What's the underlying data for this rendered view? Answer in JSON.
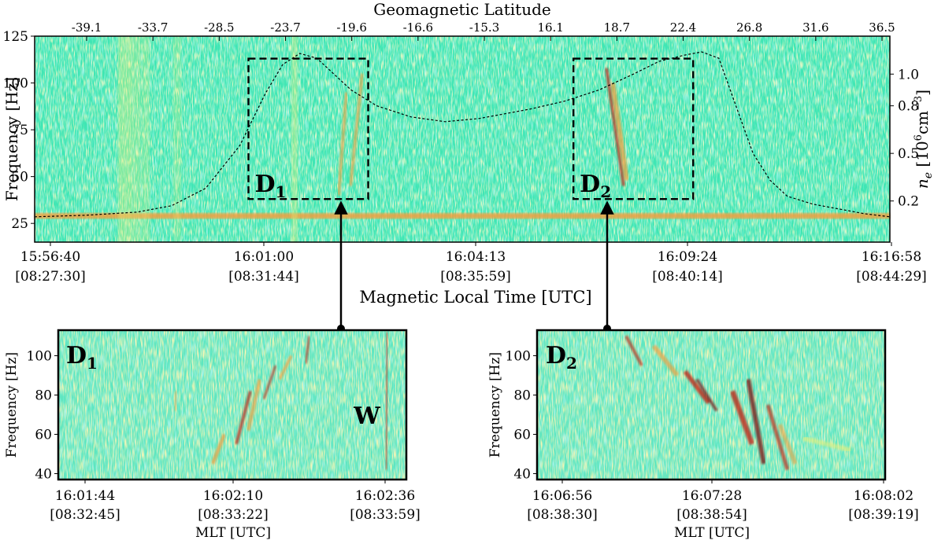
{
  "chart_data": [
    {
      "type": "heatmap",
      "panel": "top",
      "title_top_axis": "Geomagnetic Latitude",
      "top_ticks": [
        "-39.1",
        "-33.7",
        "-28.5",
        "-23.7",
        "-19.6",
        "-16.6",
        "-15.3",
        "16.1",
        "18.7",
        "22.4",
        "26.8",
        "31.6",
        "36.5"
      ],
      "ylabel": "Frequency [Hz]",
      "yticks": [
        25,
        50,
        75,
        100,
        125
      ],
      "ylim": [
        15,
        125
      ],
      "right_ylabel_main": "n",
      "right_ylabel_sub": "e",
      "right_ylabel_unit": "[10",
      "right_ylabel_exp": "6",
      "right_ylabel_unit2": "cm",
      "right_ylabel_exp2": "−3",
      "right_ylabel_close": "]",
      "right_yticks": [
        "0.2",
        "0.5",
        "0.8",
        "1.0"
      ],
      "xlabel": "Magnetic Local Time [UTC]",
      "xticks": [
        {
          "time": "15:56:40",
          "mlt": "[08:27:30]"
        },
        {
          "time": "16:01:00",
          "mlt": "[08:31:44]"
        },
        {
          "time": "16:04:13",
          "mlt": "[08:35:59]"
        },
        {
          "time": "16:09:24",
          "mlt": "[08:40:14]"
        },
        {
          "time": "16:16:58",
          "mlt": "[08:44:29]"
        }
      ],
      "ne_curve": {
        "series": "n_e",
        "x_frac": [
          0.0,
          0.06,
          0.12,
          0.16,
          0.2,
          0.24,
          0.27,
          0.29,
          0.31,
          0.33,
          0.35,
          0.37,
          0.4,
          0.44,
          0.48,
          0.52,
          0.55,
          0.58,
          0.62,
          0.66,
          0.7,
          0.73,
          0.76,
          0.78,
          0.8,
          0.82,
          0.84,
          0.86,
          0.88,
          0.91,
          0.94,
          0.97,
          1.0
        ],
        "values": [
          0.1,
          0.11,
          0.13,
          0.17,
          0.28,
          0.55,
          0.88,
          1.06,
          1.13,
          1.1,
          1.0,
          0.9,
          0.8,
          0.73,
          0.7,
          0.72,
          0.75,
          0.78,
          0.83,
          0.9,
          1.0,
          1.08,
          1.12,
          1.14,
          1.1,
          0.8,
          0.5,
          0.33,
          0.23,
          0.18,
          0.15,
          0.12,
          0.1
        ]
      },
      "boxes": [
        {
          "label": "D",
          "sub": "1",
          "x_frac": [
            0.25,
            0.39
          ],
          "y_range": [
            38,
            113
          ]
        },
        {
          "label": "D",
          "sub": "2",
          "x_frac": [
            0.63,
            0.77
          ],
          "y_range": [
            38,
            113
          ]
        }
      ]
    },
    {
      "type": "heatmap",
      "panel": "D1",
      "label": "D",
      "sub": "1",
      "annotation": "W",
      "ylabel": "Frequency [Hz]",
      "yticks": [
        40,
        60,
        80,
        100
      ],
      "ylim": [
        37,
        113
      ],
      "xlabel": "MLT [UTC]",
      "xticks": [
        {
          "time": "16:01:44",
          "mlt": "[08:32:45]"
        },
        {
          "time": "16:02:10",
          "mlt": "[08:33:22]"
        },
        {
          "time": "16:02:36",
          "mlt": "[08:33:59]"
        }
      ]
    },
    {
      "type": "heatmap",
      "panel": "D2",
      "label": "D",
      "sub": "2",
      "ylabel": "Frequency [Hz]",
      "yticks": [
        40,
        60,
        80,
        100
      ],
      "ylim": [
        37,
        113
      ],
      "xlabel": "MLT [UTC]",
      "xticks": [
        {
          "time": "16:06:56",
          "mlt": "[08:38:30]"
        },
        {
          "time": "16:07:28",
          "mlt": "[08:38:54]"
        },
        {
          "time": "16:08:02",
          "mlt": "[08:39:19]"
        }
      ]
    }
  ],
  "colors": {
    "background_field": "#3fe6b4",
    "field_light": "#86efd0",
    "field_yellow": "#e8f07a",
    "field_orange": "#f0a040",
    "field_red": "#c02818",
    "field_dark": "#7a1010",
    "line": "#000000"
  }
}
